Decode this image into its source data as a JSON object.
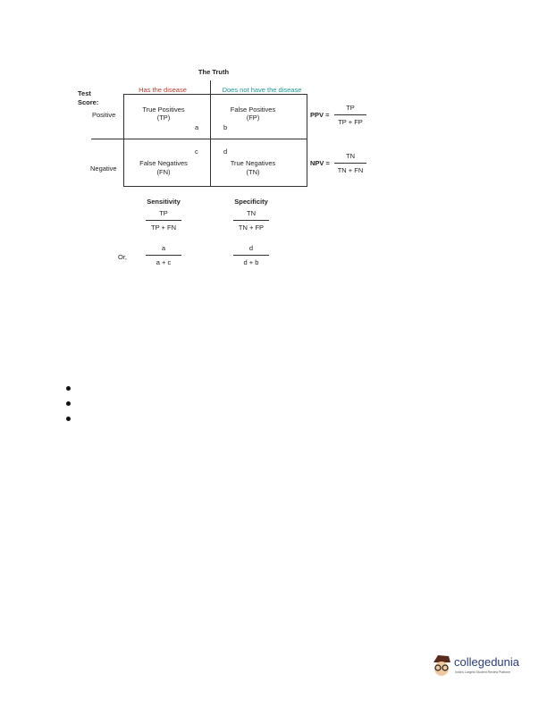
{
  "figure": {
    "title": "The Truth",
    "col_has": "Has the disease",
    "col_not": "Does not have the disease",
    "col_has_color": "#c0392b",
    "col_not_color": "#1a9a9a",
    "test_score": "Test Score:",
    "row_pos": "Positive",
    "row_neg": "Negative",
    "tp": "True Positives",
    "tp_abbr": "(TP)",
    "fp": "False Positives",
    "fp_abbr": "(FP)",
    "fn": "False Negatives",
    "fn_abbr": "(FN)",
    "tn": "True Negatives",
    "tn_abbr": "(TN)",
    "a": "a",
    "b": "b",
    "c": "c",
    "d": "d",
    "ppv": "PPV =",
    "ppv_num": "TP",
    "ppv_den": "TP + FP",
    "npv": "NPV =",
    "npv_num": "TN",
    "npv_den": "TN + FN",
    "sens": "Sensitivity",
    "sens_num": "TP",
    "sens_den": "TP + FN",
    "spec": "Specificity",
    "spec_num": "TN",
    "spec_den": "TN + FP",
    "or": "Or,",
    "sens2_num": "a",
    "sens2_den": "a + c",
    "spec2_num": "d",
    "spec2_den": "d + b"
  },
  "logo": {
    "name": "collegedunia",
    "tagline": "India's Largest Student Review Platform"
  }
}
